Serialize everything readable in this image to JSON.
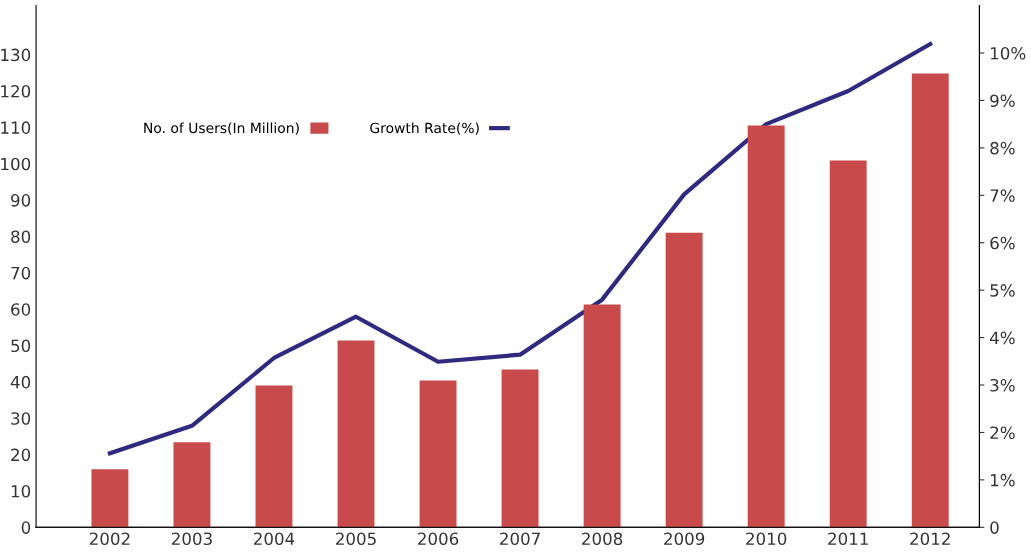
{
  "chart_data": {
    "type": "bar",
    "categories": [
      "2002",
      "2003",
      "2004",
      "2005",
      "2006",
      "2007",
      "2008",
      "2009",
      "2010",
      "2011",
      "2012"
    ],
    "series": [
      {
        "name": "No. of Users(In Million)",
        "color": "#c84a4b",
        "values": [
          16,
          23.4,
          39,
          51.4,
          40.4,
          43.4,
          61.3,
          81,
          110.5,
          100.9,
          124.8
        ]
      },
      {
        "name": "Growth Rate(%)",
        "type": "line",
        "axis": "y2",
        "color": "#2f2a80",
        "values": [
          1.56,
          2.14,
          3.57,
          4.44,
          3.49,
          3.64,
          4.8,
          7.02,
          8.5,
          9.2,
          10.19
        ]
      }
    ],
    "ylim": [
      0,
      143.5
    ],
    "yticks": [
      0,
      10,
      20,
      30,
      40,
      50,
      60,
      70,
      80,
      90,
      100,
      110,
      120,
      130
    ],
    "y2lim": [
      0,
      11
    ],
    "y2ticks": [
      0,
      {
        "value": 1,
        "label": "1%"
      },
      {
        "value": 2,
        "label": "2%"
      },
      {
        "value": 3,
        "label": "3%"
      },
      {
        "value": 4,
        "label": "4%"
      },
      {
        "value": 5,
        "label": "5%"
      },
      {
        "value": 6,
        "label": "6%"
      },
      {
        "value": 7,
        "label": "7%"
      },
      {
        "value": 8,
        "label": "8%"
      },
      {
        "value": 9,
        "label": "9%"
      },
      {
        "value": 10,
        "label": "10%"
      }
    ],
    "grid": false,
    "legend": "top left",
    "marker": "none",
    "line_style": "solid"
  }
}
